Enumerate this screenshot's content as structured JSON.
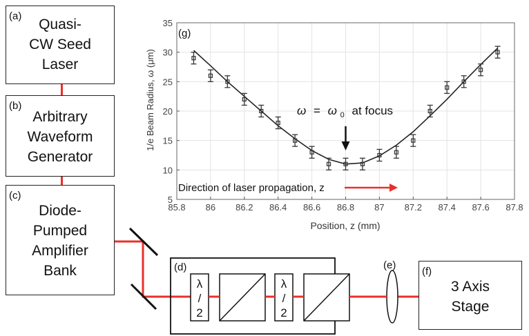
{
  "blocks": {
    "seed": {
      "tag": "(a)",
      "text": "Quasi-\nCW Seed\nLaser"
    },
    "awg": {
      "tag": "(b)",
      "text": "Arbitrary\nWaveform\nGenerator"
    },
    "amp": {
      "tag": "(c)",
      "text": "Diode-\nPumped\nAmplifier\nBank"
    },
    "optics": {
      "tag": "(d)",
      "waveplate_top": "λ",
      "waveplate_mid": "/",
      "waveplate_bot": "2"
    },
    "lens": {
      "tag": "(e)"
    },
    "stage": {
      "tag": "(f)",
      "text": "3 Axis\nStage"
    }
  },
  "colors": {
    "beam": "#e8302a",
    "curve": "#222222",
    "marker": "#333333"
  },
  "chart_data": {
    "type": "scatter",
    "panel_tag": "(g)",
    "xlabel": "Position, z (mm)",
    "ylabel": "1/e Beam Radius, ω (μm)",
    "xlim": [
      85.8,
      87.8
    ],
    "ylim": [
      5,
      35
    ],
    "xticks": [
      "85.8",
      "86",
      "86.2",
      "86.4",
      "86.6",
      "86.8",
      "87",
      "87.2",
      "87.4",
      "87.6",
      "87.8"
    ],
    "yticks": [
      "5",
      "10",
      "15",
      "20",
      "25",
      "30",
      "35"
    ],
    "grid": true,
    "series": [
      {
        "x": [
          85.9,
          86.0,
          86.1,
          86.2,
          86.3,
          86.4,
          86.5,
          86.6,
          86.7,
          86.8,
          86.9,
          87.0,
          87.1,
          87.2,
          87.3,
          87.4,
          87.5,
          87.6,
          87.7
        ],
        "y": [
          29.0,
          26.0,
          25.0,
          22.0,
          20.0,
          18.0,
          15.0,
          13.0,
          11.0,
          11.0,
          11.0,
          12.5,
          13.0,
          15.0,
          20.0,
          24.0,
          25.0,
          27.0,
          30.0
        ],
        "err": [
          1.0,
          1.0,
          1.0,
          1.0,
          1.0,
          1.0,
          1.0,
          1.0,
          1.0,
          1.0,
          1.0,
          1.0,
          1.0,
          1.0,
          1.0,
          1.0,
          1.0,
          1.0,
          1.0
        ]
      }
    ],
    "fit": {
      "x": [
        85.9,
        86.0,
        86.1,
        86.2,
        86.3,
        86.4,
        86.5,
        86.6,
        86.7,
        86.8,
        86.9,
        87.0,
        87.1,
        87.2,
        87.3,
        87.4,
        87.5,
        87.6,
        87.7
      ],
      "y": [
        30.3,
        27.7,
        25.0,
        22.5,
        20.0,
        17.5,
        15.3,
        13.3,
        11.8,
        11.0,
        11.2,
        12.4,
        14.2,
        16.5,
        19.2,
        22.0,
        25.0,
        27.9,
        30.7
      ]
    },
    "annotations": {
      "focus_text": "at focus",
      "omega": "ω",
      "equals": "=",
      "omega0_sub": "0",
      "focus_x": 86.8,
      "direction_text": "Direction of laser propagation, z"
    }
  }
}
